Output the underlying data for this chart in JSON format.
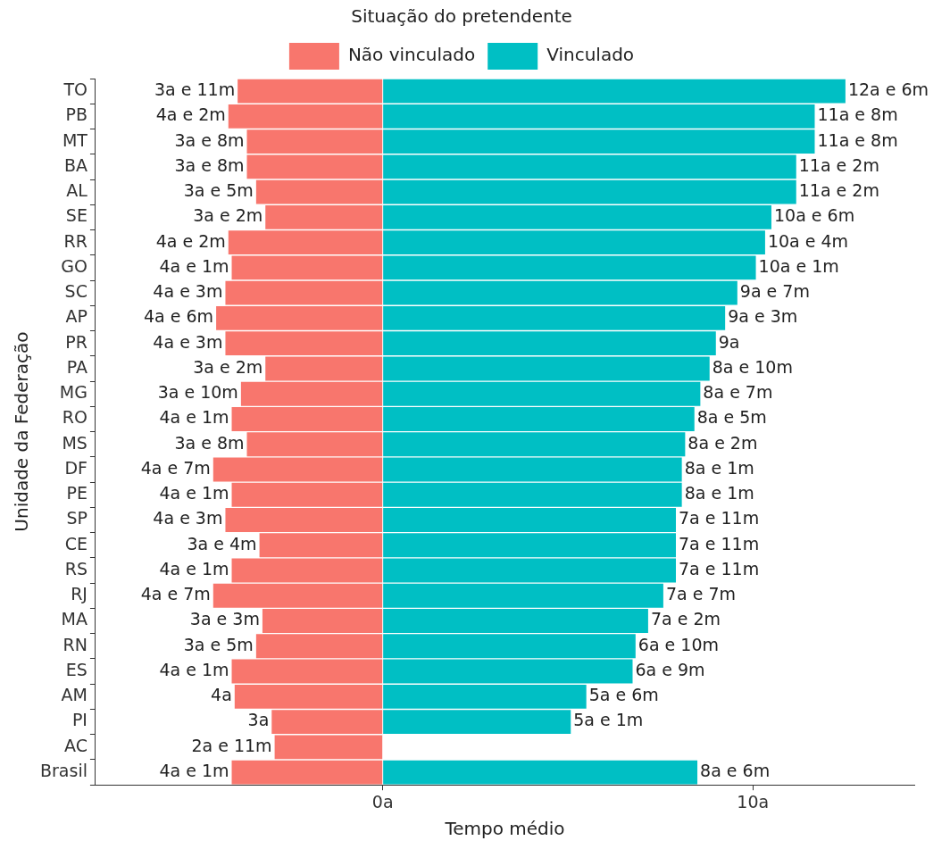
{
  "chart_data": {
    "type": "bar",
    "orientation": "horizontal",
    "stacked": true,
    "legend": "top",
    "legend_title": "Situação do pretendente",
    "xlabel": "Tempo médio",
    "ylabel": "Unidade da Federação",
    "grid": false,
    "categories": [
      "TO",
      "PB",
      "MT",
      "BA",
      "AL",
      "SE",
      "RR",
      "GO",
      "SC",
      "AP",
      "PR",
      "PA",
      "MG",
      "RO",
      "MS",
      "DF",
      "PE",
      "SP",
      "CE",
      "RS",
      "RJ",
      "MA",
      "RN",
      "ES",
      "AM",
      "PI",
      "AC",
      "Brasil"
    ],
    "xlim": [
      -7.76,
      14.36
    ],
    "xticks": [
      {
        "value": 0,
        "label": "0a"
      },
      {
        "value": 10,
        "label": "10a"
      }
    ],
    "series": [
      {
        "name": "Não vinculado",
        "color": "#f8766d",
        "values": [
          -3.92,
          -4.17,
          -3.67,
          -3.67,
          -3.42,
          -3.17,
          -4.17,
          -4.08,
          -4.25,
          -4.5,
          -4.25,
          -3.17,
          -3.83,
          -4.08,
          -3.67,
          -4.58,
          -4.08,
          -4.25,
          -3.33,
          -4.08,
          -4.58,
          -3.25,
          -3.42,
          -4.08,
          -4,
          -3,
          -2.92,
          -4.08
        ]
      },
      {
        "name": "Vinculado",
        "color": "#00bfc4",
        "values": [
          12.5,
          11.67,
          11.67,
          11.17,
          11.17,
          10.5,
          10.33,
          10.08,
          9.58,
          9.25,
          9,
          8.83,
          8.58,
          8.42,
          8.17,
          8.08,
          8.08,
          7.92,
          7.92,
          7.92,
          7.58,
          7.17,
          6.83,
          6.75,
          5.5,
          5.08,
          null,
          8.5
        ]
      }
    ],
    "annotations": [
      {
        "text": "3a e 11m",
        "x": -3.92,
        "y": "TO"
      },
      {
        "text": "4a e 2m",
        "x": -4.17,
        "y": "PB"
      },
      {
        "text": "3a e 8m",
        "x": -3.67,
        "y": "MT"
      },
      {
        "text": "3a e 8m",
        "x": -3.67,
        "y": "BA"
      },
      {
        "text": "3a e 5m",
        "x": -3.42,
        "y": "AL"
      },
      {
        "text": "3a e 2m",
        "x": -3.17,
        "y": "SE"
      },
      {
        "text": "4a e 2m",
        "x": -4.17,
        "y": "RR"
      },
      {
        "text": "4a e 1m",
        "x": -4.08,
        "y": "GO"
      },
      {
        "text": "4a e 3m",
        "x": -4.25,
        "y": "SC"
      },
      {
        "text": "4a e 6m",
        "x": -4.5,
        "y": "AP"
      },
      {
        "text": "4a e 3m",
        "x": -4.25,
        "y": "PR"
      },
      {
        "text": "3a e 2m",
        "x": -3.17,
        "y": "PA"
      },
      {
        "text": "3a e 10m",
        "x": -3.83,
        "y": "MG"
      },
      {
        "text": "4a e 1m",
        "x": -4.08,
        "y": "RO"
      },
      {
        "text": "3a e 8m",
        "x": -3.67,
        "y": "MS"
      },
      {
        "text": "4a e 7m",
        "x": -4.58,
        "y": "DF"
      },
      {
        "text": "4a e 1m",
        "x": -4.08,
        "y": "PE"
      },
      {
        "text": "4a e 3m",
        "x": -4.25,
        "y": "SP"
      },
      {
        "text": "3a e 4m",
        "x": -3.33,
        "y": "CE"
      },
      {
        "text": "4a e 1m",
        "x": -4.08,
        "y": "RS"
      },
      {
        "text": "4a e 7m",
        "x": -4.58,
        "y": "RJ"
      },
      {
        "text": "3a e 3m",
        "x": -3.25,
        "y": "MA"
      },
      {
        "text": "3a e 5m",
        "x": -3.42,
        "y": "RN"
      },
      {
        "text": "4a e 1m",
        "x": -4.08,
        "y": "ES"
      },
      {
        "text": "4a",
        "x": -4,
        "y": "AM"
      },
      {
        "text": "3a",
        "x": -3,
        "y": "PI"
      },
      {
        "text": "2a e 11m",
        "x": -2.92,
        "y": "AC"
      },
      {
        "text": "4a e 1m",
        "x": -4.08,
        "y": "Brasil"
      },
      {
        "text": "12a e 6m",
        "x": 12.5,
        "y": "TO"
      },
      {
        "text": "11a e 8m",
        "x": 11.67,
        "y": "PB"
      },
      {
        "text": "11a e 8m",
        "x": 11.67,
        "y": "MT"
      },
      {
        "text": "11a e 2m",
        "x": 11.17,
        "y": "BA"
      },
      {
        "text": "11a e 2m",
        "x": 11.17,
        "y": "AL"
      },
      {
        "text": "10a e 6m",
        "x": 10.5,
        "y": "SE"
      },
      {
        "text": "10a e 4m",
        "x": 10.33,
        "y": "RR"
      },
      {
        "text": "10a e 1m",
        "x": 10.08,
        "y": "GO"
      },
      {
        "text": "9a e 7m",
        "x": 9.58,
        "y": "SC"
      },
      {
        "text": "9a e 3m",
        "x": 9.25,
        "y": "AP"
      },
      {
        "text": "9a",
        "x": 9,
        "y": "PR"
      },
      {
        "text": "8a e 10m",
        "x": 8.83,
        "y": "PA"
      },
      {
        "text": "8a e 7m",
        "x": 8.58,
        "y": "MG"
      },
      {
        "text": "8a e 5m",
        "x": 8.42,
        "y": "RO"
      },
      {
        "text": "8a e 2m",
        "x": 8.17,
        "y": "MS"
      },
      {
        "text": "8a e 1m",
        "x": 8.08,
        "y": "DF"
      },
      {
        "text": "8a e 1m",
        "x": 8.08,
        "y": "PE"
      },
      {
        "text": "7a e 11m",
        "x": 7.92,
        "y": "SP"
      },
      {
        "text": "7a e 11m",
        "x": 7.92,
        "y": "CE"
      },
      {
        "text": "7a e 11m",
        "x": 7.92,
        "y": "RS"
      },
      {
        "text": "7a e 7m",
        "x": 7.58,
        "y": "RJ"
      },
      {
        "text": "7a e 2m",
        "x": 7.17,
        "y": "MA"
      },
      {
        "text": "6a e 10m",
        "x": 6.83,
        "y": "RN"
      },
      {
        "text": "6a e 9m",
        "x": 6.75,
        "y": "ES"
      },
      {
        "text": "5a e 6m",
        "x": 5.5,
        "y": "AM"
      },
      {
        "text": "5a e 1m",
        "x": 5.08,
        "y": "PI"
      },
      {
        "text": "8a e 6m",
        "x": 8.5,
        "y": "Brasil"
      }
    ]
  }
}
